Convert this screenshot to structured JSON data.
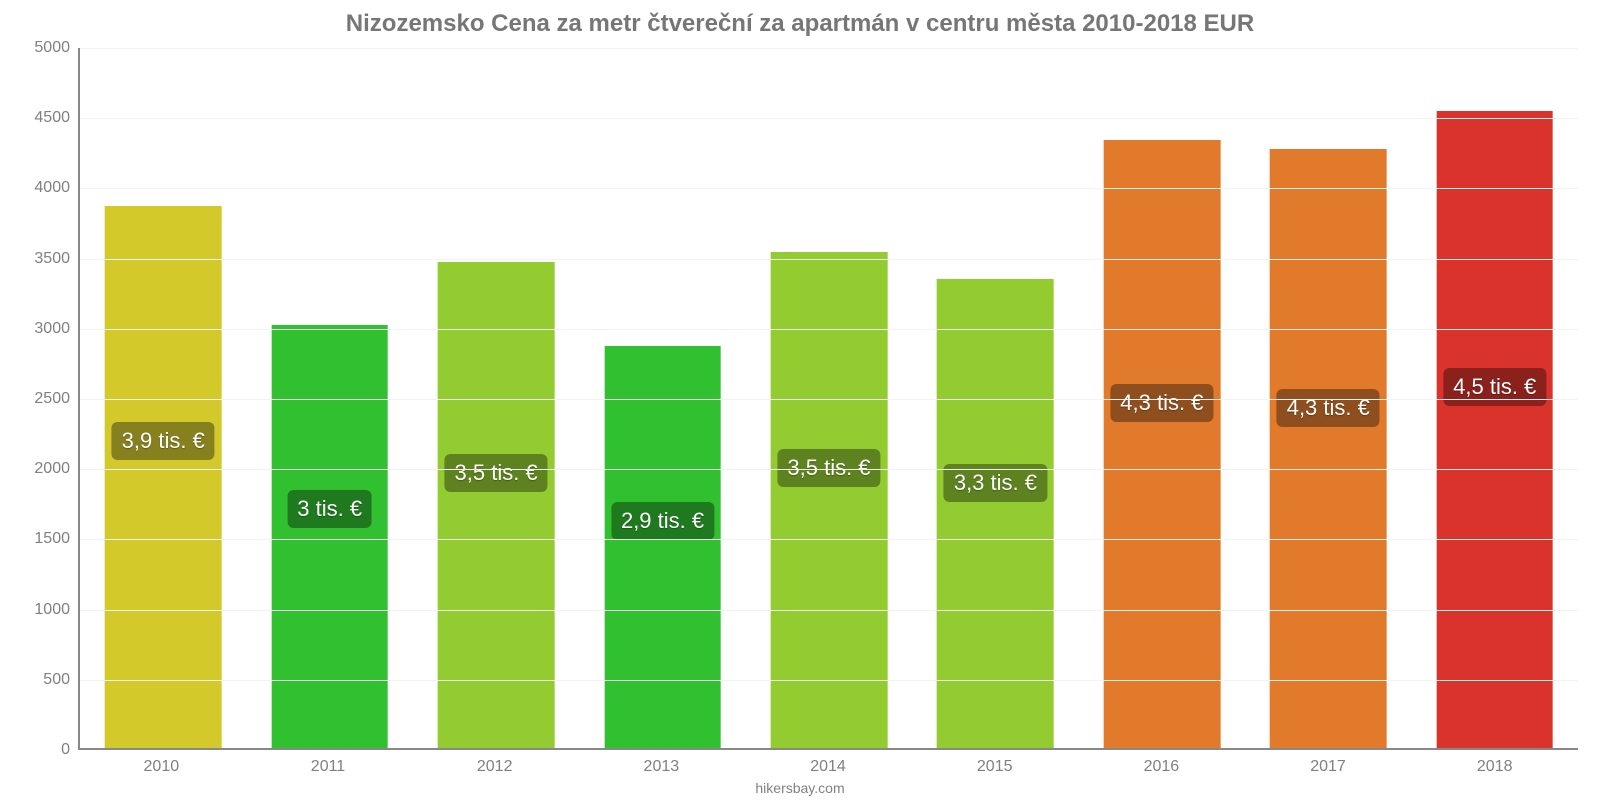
{
  "chart": {
    "type": "bar",
    "title": "Nizozemsko Cena za metr čtvereční za apartmán v centru města 2010-2018 EUR",
    "title_fontsize": 24,
    "title_color": "#767676",
    "source": "hikersbay.com",
    "source_fontsize": 14,
    "background_color": "#ffffff",
    "grid_color": "#f2f2f2",
    "axis_color": "#888888",
    "tick_label_color": "#808080",
    "tick_fontsize": 16,
    "ylim": [
      0,
      5000
    ],
    "ytick_step": 500,
    "categories": [
      "2010",
      "2011",
      "2012",
      "2013",
      "2014",
      "2015",
      "2016",
      "2017",
      "2018"
    ],
    "values": [
      3860,
      3010,
      3460,
      2860,
      3530,
      3340,
      4330,
      4270,
      4540
    ],
    "value_labels": [
      "3,9 tis. €",
      "3 tis. €",
      "3,5 tis. €",
      "2,9 tis. €",
      "3,5 tis. €",
      "3,3 tis. €",
      "4,3 tis. €",
      "4,3 tis. €",
      "4,5 tis. €"
    ],
    "bar_colors": [
      "#d4c92b",
      "#30c030",
      "#92cc30",
      "#30c030",
      "#92cc30",
      "#92cc30",
      "#e27a2b",
      "#e27a2b",
      "#d9332b"
    ],
    "badge_colors": [
      "#86801f",
      "#1f7a1f",
      "#5d821f",
      "#1f7a1f",
      "#5d821f",
      "#5d821f",
      "#8e4e1d",
      "#8e4e1d",
      "#8a211c"
    ],
    "value_label_fontsize": 22,
    "bar_width_ratio": 0.7
  }
}
